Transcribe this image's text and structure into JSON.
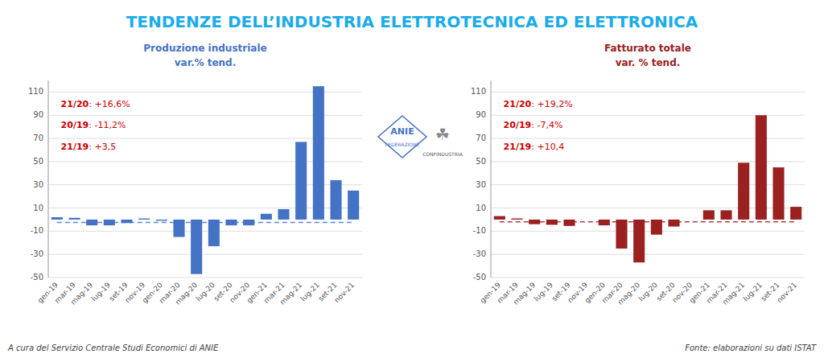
{
  "title": "TENDENZE DELL’INDUSTRIA ELETTROTECNICA ED ELETTRONICA",
  "annotations": [
    "A cura del Servizio Centrale Studi Economici di ANIE",
    "Fonte:  elaborazioni su dati ISTAT",
    "ANIE",
    "FEDERAZIONE",
    "☘",
    "CONFINDUSTRIA"
  ],
  "chart_data": [
    {
      "type": "bar",
      "title": "Produzione industriale",
      "subtitle": "var.% tend.",
      "annotations": [
        [
          "21/20",
          ": +16,6%"
        ],
        [
          "20/19",
          ": -11,2%"
        ],
        [
          "21/19",
          ": +3,5"
        ]
      ],
      "categories": [
        "gen-19",
        "mar-19",
        "mag-19",
        "lug-19",
        "set-19",
        "nov-19",
        "gen-20",
        "mar-20",
        "mag-20",
        "lug-20",
        "set-20",
        "nov-20",
        "gen-21",
        "mar-21",
        "mag-21",
        "lug-21",
        "set-21",
        "nov-21"
      ],
      "values": [
        2.0,
        1.5,
        -5.0,
        -5.0,
        -3.0,
        1.0,
        -1.0,
        -15.0,
        -47.0,
        -23.0,
        -5.0,
        -5.0,
        5.0,
        9.0,
        67.0,
        115.0,
        34.0,
        25.0
      ],
      "trend": -2.5,
      "color": "#4472C4",
      "ylim": [
        -50,
        120
      ],
      "yticks": [
        -50,
        -30,
        -10,
        10,
        30,
        50,
        70,
        90,
        110
      ],
      "grid": true
    },
    {
      "type": "bar",
      "title": "Fatturato totale",
      "subtitle": "var. % tend.",
      "annotations": [
        [
          "21/20",
          ": +19,2%"
        ],
        [
          "20/19",
          ": -7,4%"
        ],
        [
          "21/19",
          ": +10,4"
        ]
      ],
      "categories": [
        "gen-19",
        "mar-19",
        "mag-19",
        "lug-19",
        "set-19",
        "nov-19",
        "gen-20",
        "mar-20",
        "mag-20",
        "lug-20",
        "set-20",
        "nov-20",
        "gen-21",
        "mar-21",
        "mag-21",
        "lug-21",
        "set-21",
        "nov-21"
      ],
      "values": [
        3.0,
        1.0,
        -4.0,
        -4.5,
        -5.5,
        0.0,
        -5.0,
        -25.0,
        -37.0,
        -13.0,
        -6.0,
        0.0,
        8.0,
        8.0,
        49.0,
        90.0,
        45.0,
        11.0
      ],
      "trend": -2.0,
      "color": "#9B2020",
      "ylim": [
        -50,
        120
      ],
      "yticks": [
        -50,
        -30,
        -10,
        10,
        30,
        50,
        70,
        90,
        110
      ],
      "grid": true
    }
  ]
}
